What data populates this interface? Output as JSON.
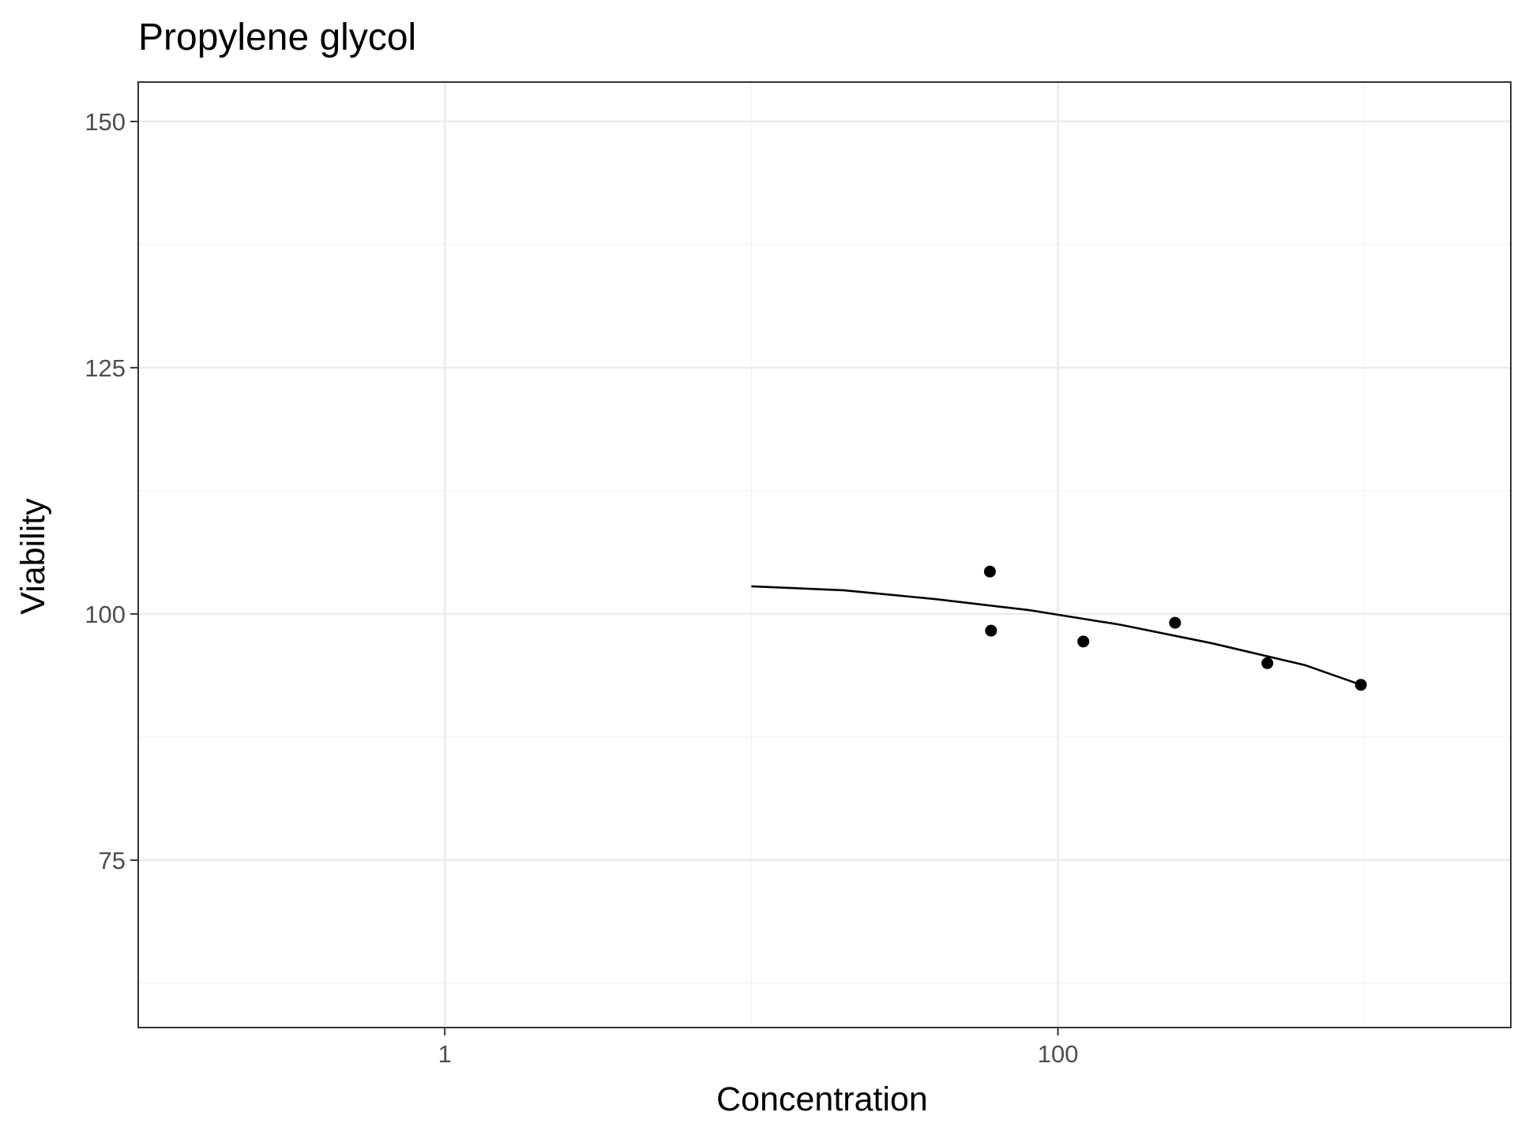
{
  "chart_data": {
    "type": "scatter",
    "title": "Propylene glycol",
    "xlabel": "Concentration",
    "ylabel": "Viability",
    "x_scale": "log10",
    "xlim": [
      0.1,
      3000
    ],
    "ylim": [
      58,
      154
    ],
    "x_ticks": [
      {
        "value": 1,
        "label": "1"
      },
      {
        "value": 100,
        "label": "100"
      }
    ],
    "y_ticks": [
      {
        "value": 75,
        "label": "75"
      },
      {
        "value": 100,
        "label": "100"
      },
      {
        "value": 125,
        "label": "125"
      },
      {
        "value": 150,
        "label": "150"
      }
    ],
    "grid": true,
    "points": [
      {
        "x": 60,
        "y": 104.3
      },
      {
        "x": 60.5,
        "y": 98.3
      },
      {
        "x": 121,
        "y": 97.2
      },
      {
        "x": 241,
        "y": 99.1
      },
      {
        "x": 482,
        "y": 95
      },
      {
        "x": 973,
        "y": 92.8
      }
    ],
    "fit_line": [
      {
        "x": 10,
        "y": 102.8
      },
      {
        "x": 20,
        "y": 102.4
      },
      {
        "x": 40,
        "y": 101.5
      },
      {
        "x": 80,
        "y": 100.4
      },
      {
        "x": 160,
        "y": 98.9
      },
      {
        "x": 320,
        "y": 97
      },
      {
        "x": 640,
        "y": 94.8
      },
      {
        "x": 973,
        "y": 92.8
      }
    ],
    "colors": {
      "points": "#000000",
      "line": "#000000",
      "grid_major": "#ebebeb",
      "grid_minor": "#f3f3f3",
      "panel_border": "#333333",
      "tick_text": "#4d4d4d"
    }
  }
}
